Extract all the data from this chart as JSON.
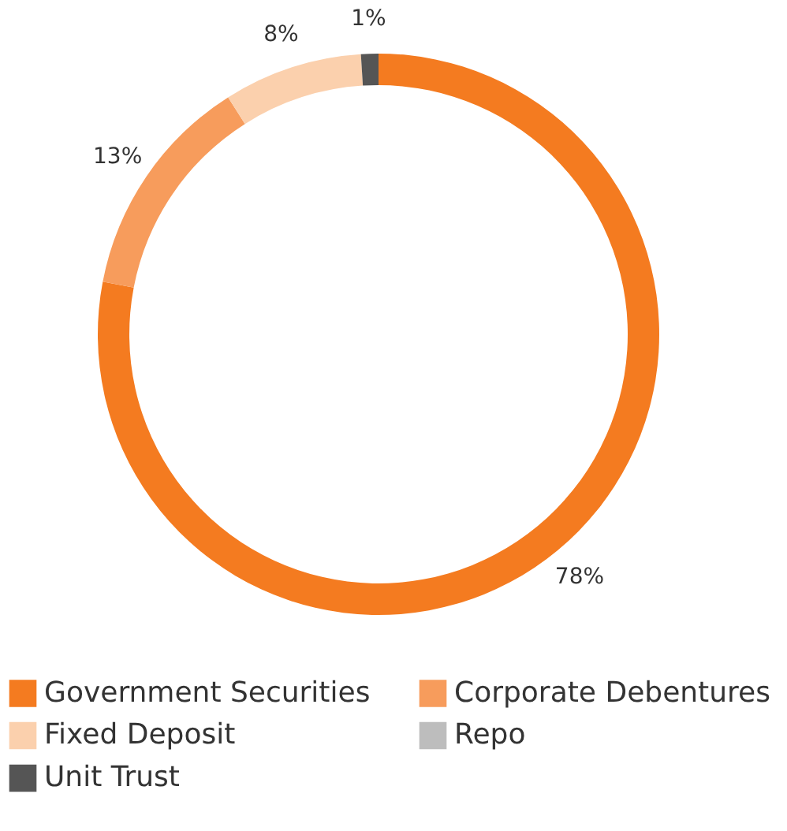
{
  "chart_data": {
    "type": "donut",
    "categories": [
      "Government Securities",
      "Corporate Debentures",
      "Fixed Deposit",
      "Repo",
      "Unit Trust"
    ],
    "values": [
      78,
      13,
      8,
      0,
      1
    ],
    "colors": [
      "#f47b20",
      "#f79c5c",
      "#fbd0ad",
      "#bdbdbd",
      "#555555"
    ],
    "value_labels": [
      "78%",
      "13%",
      "8%",
      null,
      "1%"
    ],
    "legend": "bottom"
  }
}
